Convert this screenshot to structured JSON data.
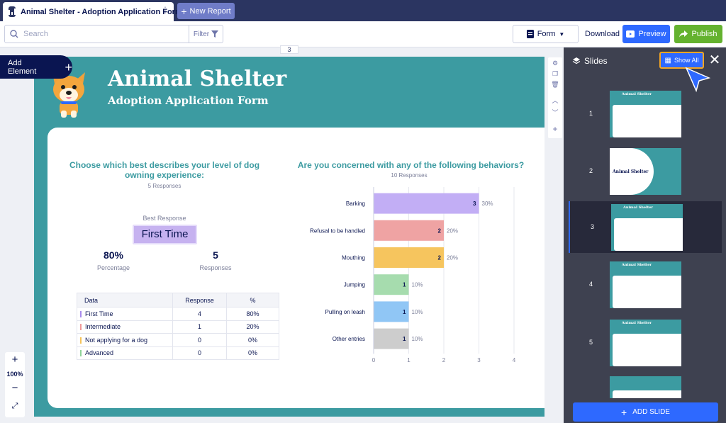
{
  "tab": {
    "title": "Animal Shelter - Adoption Application Form",
    "new_report": "New Report"
  },
  "toolbar": {
    "search_placeholder": "Search",
    "filter": "Filter",
    "form": "Form",
    "download": "Download",
    "preview": "Preview",
    "publish": "Publish"
  },
  "canvas": {
    "page_number": "3",
    "add_element": "Add Element"
  },
  "slide": {
    "title": "Animal Shelter",
    "subtitle": "Adoption Application Form",
    "q1": {
      "question_line1": "Choose which best describes your level of dog",
      "question_line2": "owning experience:",
      "responses_label": "5 Responses",
      "best_label": "Best Response",
      "best_value": "First Time",
      "percentage_value": "80%",
      "percentage_label": "Percentage",
      "responses_value": "5",
      "responses_value_label": "Responses",
      "table": {
        "headers": [
          "Data",
          "Response",
          "%"
        ],
        "rows": [
          {
            "label": "First Time",
            "response": "4",
            "pct": "80%",
            "color": "#a98bed"
          },
          {
            "label": "Intermediate",
            "response": "1",
            "pct": "20%",
            "color": "#ef9a9a"
          },
          {
            "label": "Not applying for a dog",
            "response": "0",
            "pct": "0%",
            "color": "#f5c35a"
          },
          {
            "label": "Advanced",
            "response": "0",
            "pct": "0%",
            "color": "#8fd49a"
          }
        ]
      }
    },
    "q2": {
      "question": "Are you concerned with any of the following behaviors?",
      "responses_label": "10 Responses"
    }
  },
  "chart_data": {
    "type": "bar",
    "orientation": "horizontal",
    "categories": [
      "Barking",
      "Refusal to be handled",
      "Mouthing",
      "Jumping",
      "Pulling on leash",
      "Other entries"
    ],
    "values": [
      3,
      2,
      2,
      1,
      1,
      1
    ],
    "percentages": [
      "30%",
      "20%",
      "20%",
      "10%",
      "10%",
      "10%"
    ],
    "colors": [
      "#c2aef5",
      "#efa3a3",
      "#f6c55e",
      "#a6dcae",
      "#90c6f5",
      "#cdcdcd"
    ],
    "xlim": [
      0,
      4
    ],
    "ticks": [
      "0",
      "1",
      "2",
      "3",
      "4"
    ]
  },
  "right_panel": {
    "title": "Slides",
    "show_all": "Show All",
    "slides": [
      "1",
      "2",
      "3",
      "4",
      "5"
    ],
    "thumb_title": "Animal Shelter",
    "add_slide": "ADD SLIDE"
  },
  "zoom": {
    "level": "100%"
  }
}
